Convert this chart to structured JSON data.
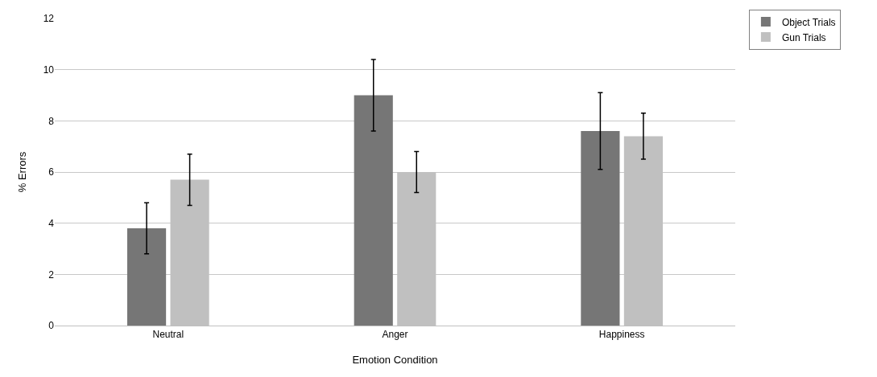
{
  "chart_data": {
    "type": "bar",
    "xlabel": "Emotion Condition",
    "ylabel": "% Errors",
    "categories": [
      "Neutral",
      "Anger",
      "Happiness"
    ],
    "series": [
      {
        "name": "Object Trials",
        "color": "#767676",
        "values": [
          3.8,
          9.0,
          7.6
        ],
        "errors": [
          1.0,
          1.4,
          1.5
        ]
      },
      {
        "name": "Gun Trials",
        "color": "#c0c0c0",
        "values": [
          5.7,
          6.0,
          7.4
        ],
        "errors": [
          1.0,
          0.8,
          0.9
        ]
      }
    ],
    "ylim": [
      0,
      12
    ],
    "yticks": [
      0,
      2,
      4,
      6,
      8,
      10,
      12
    ],
    "grid": "y",
    "legend": "top right"
  }
}
